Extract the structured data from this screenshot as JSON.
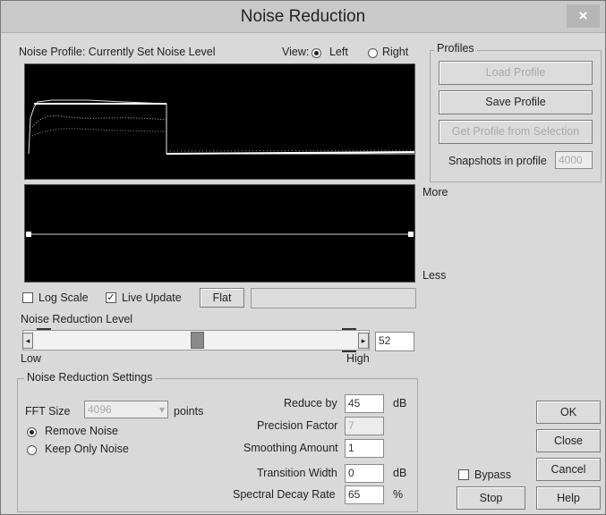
{
  "window": {
    "title": "Noise Reduction",
    "close_symbol": "×"
  },
  "profile_panel": {
    "label": "Noise Profile: Currently Set Noise Level",
    "view_label": "View:",
    "view_left": "Left",
    "view_right": "Right",
    "view_selected": "Left"
  },
  "curve_panel": {
    "more_label": "More",
    "less_label": "Less"
  },
  "options": {
    "log_scale_label": "Log Scale",
    "log_scale_checked": false,
    "live_update_label": "Live Update",
    "live_update_checked": true,
    "flat_button": "Flat",
    "check_mark": "✓"
  },
  "level": {
    "label": "Noise Reduction Level",
    "low_label": "Low",
    "high_label": "High",
    "value": "52",
    "left_arrow": "◂",
    "right_arrow": "▸"
  },
  "settings": {
    "group_label": "Noise Reduction Settings",
    "fft_label": "FFT Size",
    "fft_value": "4096",
    "fft_arrow": "▾",
    "points_label": "points",
    "remove_noise": "Remove Noise",
    "keep_only_noise": "Keep Only Noise",
    "mode_selected": "Remove Noise",
    "reduce_by_label": "Reduce by",
    "reduce_by_value": "45",
    "reduce_by_unit": "dB",
    "precision_label": "Precision Factor",
    "precision_value": "7",
    "smoothing_label": "Smoothing Amount",
    "smoothing_value": "1",
    "transition_label": "Transition Width",
    "transition_value": "0",
    "transition_unit": "dB",
    "decay_label": "Spectral Decay Rate",
    "decay_value": "65",
    "decay_unit": "%"
  },
  "profiles": {
    "group_label": "Profiles",
    "load": "Load Profile",
    "save": "Save Profile",
    "get": "Get Profile from Selection",
    "snapshots_label": "Snapshots in profile",
    "snapshots_value": "4000"
  },
  "footer": {
    "bypass_label": "Bypass",
    "stop": "Stop",
    "ok": "OK",
    "close": "Close",
    "cancel": "Cancel",
    "help": "Help"
  }
}
